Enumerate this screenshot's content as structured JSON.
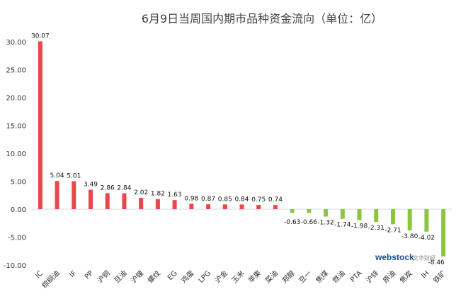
{
  "chart_data": {
    "type": "bar",
    "title": "6月9日当周国内期市品种资金流向（单位：亿）",
    "ylim": [
      -10,
      30
    ],
    "yticks": [
      "30.00",
      "25.00",
      "20.00",
      "15.00",
      "10.00",
      "5.00",
      "0.00",
      "-5.00",
      "-10.00"
    ],
    "categories": [
      "IC",
      "棕榈油",
      "IF",
      "PP",
      "沪铜",
      "豆油",
      "沪镍",
      "螺纹",
      "EG",
      "鸡蛋",
      "LPG",
      "沪金",
      "玉米",
      "苹果",
      "菜油",
      "郑醇",
      "豆一",
      "焦煤",
      "燃油",
      "PTA",
      "沪锌",
      "原油",
      "焦炭",
      "IH",
      "铁矿"
    ],
    "values": [
      30.07,
      5.04,
      5.01,
      3.49,
      2.86,
      2.84,
      2.02,
      1.82,
      1.63,
      0.98,
      0.87,
      0.85,
      0.84,
      0.75,
      0.74,
      -0.63,
      -0.66,
      -1.32,
      -1.74,
      -1.98,
      -2.31,
      -2.71,
      -3.8,
      -4.02,
      -8.46
    ],
    "data_labels": [
      "30.07",
      "5.04",
      "5.01",
      "3.49",
      "2.86",
      "2.84",
      "2.02",
      "1.82",
      "1.63",
      "0.98",
      "0.87",
      "0.85",
      "0.84",
      "0.75",
      "0.74",
      "-0.63",
      "-0.66",
      "-1.32",
      "-1.74",
      "-1.98",
      "-2.31",
      "-2.71",
      "-3.80",
      "-4.02",
      "-8.46"
    ],
    "colors": {
      "positive": "#e8484b",
      "negative": "#8cc63f"
    },
    "grid": false
  },
  "watermark": {
    "brand": "webstock",
    "sub": "文华财经"
  }
}
